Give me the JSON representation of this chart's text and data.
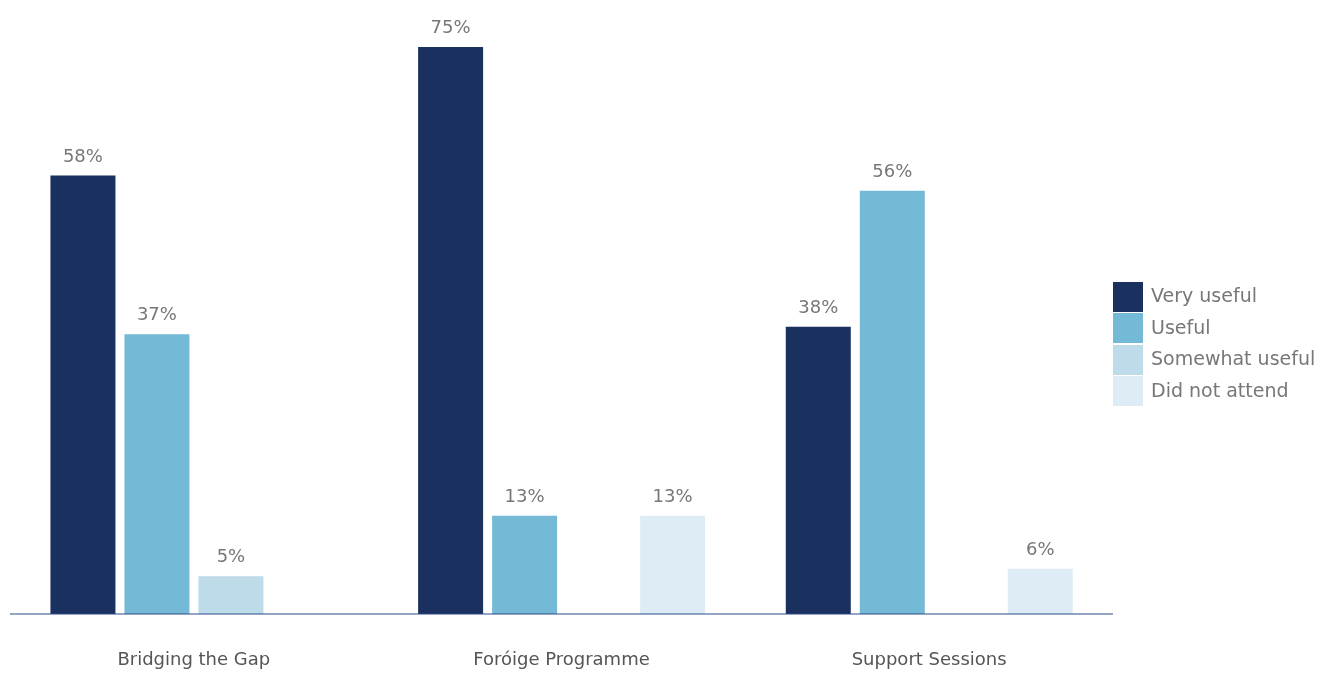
{
  "chart_data": {
    "type": "bar",
    "categories": [
      "Bridging the Gap",
      "Foróige Programme",
      "Support Sessions"
    ],
    "series": [
      {
        "name": "Very useful",
        "color": "#1a3160",
        "values": [
          58,
          75,
          38
        ],
        "value_labels": [
          "58%",
          "75%",
          "38%"
        ]
      },
      {
        "name": "Useful",
        "color": "#74b9d5",
        "values": [
          37,
          13,
          56
        ],
        "value_labels": [
          "37%",
          "13%",
          "56%"
        ]
      },
      {
        "name": "Somewhat useful",
        "color": "#bddbe9",
        "values": [
          5,
          null,
          null
        ],
        "value_labels": [
          "5%",
          null,
          null
        ]
      },
      {
        "name": "Did not attend",
        "color": "#deedf5",
        "values": [
          null,
          13,
          6
        ],
        "value_labels": [
          null,
          "13%",
          "6%"
        ]
      }
    ],
    "legend": "right",
    "grid": false
  }
}
